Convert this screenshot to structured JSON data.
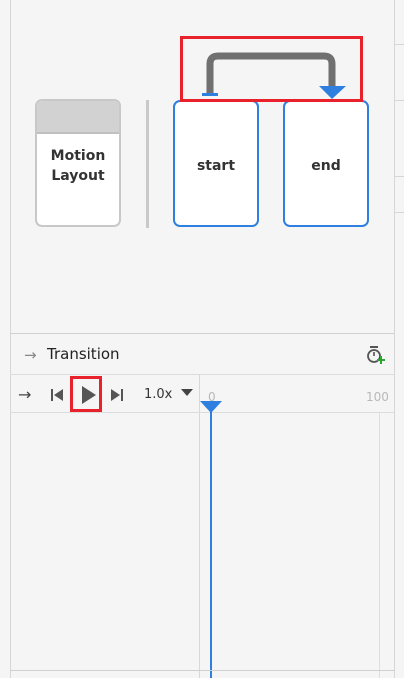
{
  "canvas": {
    "motion_layout": {
      "line1": "Motion",
      "line2": "Layout"
    },
    "start_label": "start",
    "end_label": "end"
  },
  "transition": {
    "title": "Transition"
  },
  "timeline": {
    "speed": "1.0x",
    "tick_start": "0",
    "tick_end": "100"
  },
  "colors": {
    "accent": "#2f7fe0",
    "highlight": "#e8212b",
    "connector": "#707070"
  }
}
